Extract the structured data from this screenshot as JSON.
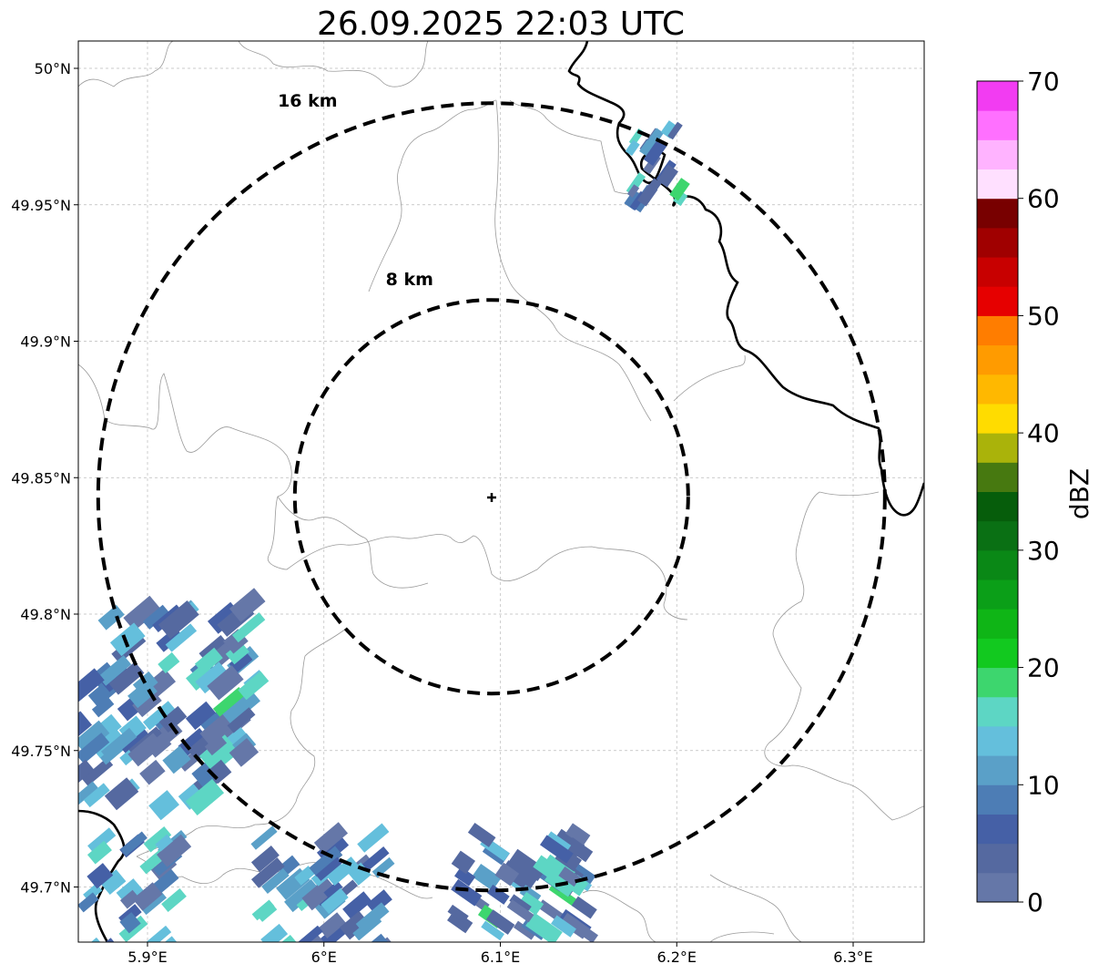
{
  "title": "26.09.2025 22:03 UTC",
  "map": {
    "lon_range": [
      5.86,
      6.34
    ],
    "lat_range": [
      49.68,
      50.01
    ],
    "lon_ticks": [
      {
        "value": 5.9,
        "label": "5.9°E"
      },
      {
        "value": 6.0,
        "label": "6°E"
      },
      {
        "value": 6.1,
        "label": "6.1°E"
      },
      {
        "value": 6.2,
        "label": "6.2°E"
      },
      {
        "value": 6.3,
        "label": "6.3°E"
      }
    ],
    "lat_ticks": [
      {
        "value": 50.0,
        "label": "50°N"
      },
      {
        "value": 49.95,
        "label": "49.95°N"
      },
      {
        "value": 49.9,
        "label": "49.9°N"
      },
      {
        "value": 49.85,
        "label": "49.85°N"
      },
      {
        "value": 49.8,
        "label": "49.8°N"
      },
      {
        "value": 49.75,
        "label": "49.75°N"
      },
      {
        "value": 49.7,
        "label": "49.7°N"
      }
    ],
    "gridlines": true,
    "radar_center": {
      "lon": 6.095,
      "lat": 49.843
    },
    "range_rings": [
      {
        "label": "8 km",
        "radius_km": 8
      },
      {
        "label": "16 km",
        "radius_km": 16
      }
    ],
    "echo_clusters": [
      {
        "name": "northeast",
        "lon": 6.19,
        "lat": 49.965
      },
      {
        "name": "west",
        "lon": 5.9,
        "lat": 49.77
      },
      {
        "name": "south-west",
        "lon": 5.9,
        "lat": 49.695
      },
      {
        "name": "south-center",
        "lon": 6.0,
        "lat": 49.695
      },
      {
        "name": "south-east",
        "lon": 6.11,
        "lat": 49.7
      }
    ]
  },
  "colorbar": {
    "label": "dBZ",
    "min": 0,
    "max": 70,
    "ticks": [
      {
        "value": 0,
        "label": "0"
      },
      {
        "value": 10,
        "label": "10"
      },
      {
        "value": 20,
        "label": "20"
      },
      {
        "value": 30,
        "label": "30"
      },
      {
        "value": 40,
        "label": "40"
      },
      {
        "value": 50,
        "label": "50"
      },
      {
        "value": 60,
        "label": "60"
      },
      {
        "value": 70,
        "label": "70"
      }
    ],
    "colors": [
      "#6577a8",
      "#5569a0",
      "#4560a6",
      "#4d7db5",
      "#5aa0c8",
      "#64bfdc",
      "#5dd6c4",
      "#3dd66e",
      "#12c91f",
      "#0fb516",
      "#0b9f18",
      "#0a8816",
      "#0a7014",
      "#065d0b",
      "#477910",
      "#aab30a",
      "#ffdc00",
      "#ffb800",
      "#ff9b00",
      "#ff7d00",
      "#e60000",
      "#c80000",
      "#a00000",
      "#780000",
      "#ffe0ff",
      "#ffb3ff",
      "#ff70ff",
      "#f23cf2"
    ]
  }
}
